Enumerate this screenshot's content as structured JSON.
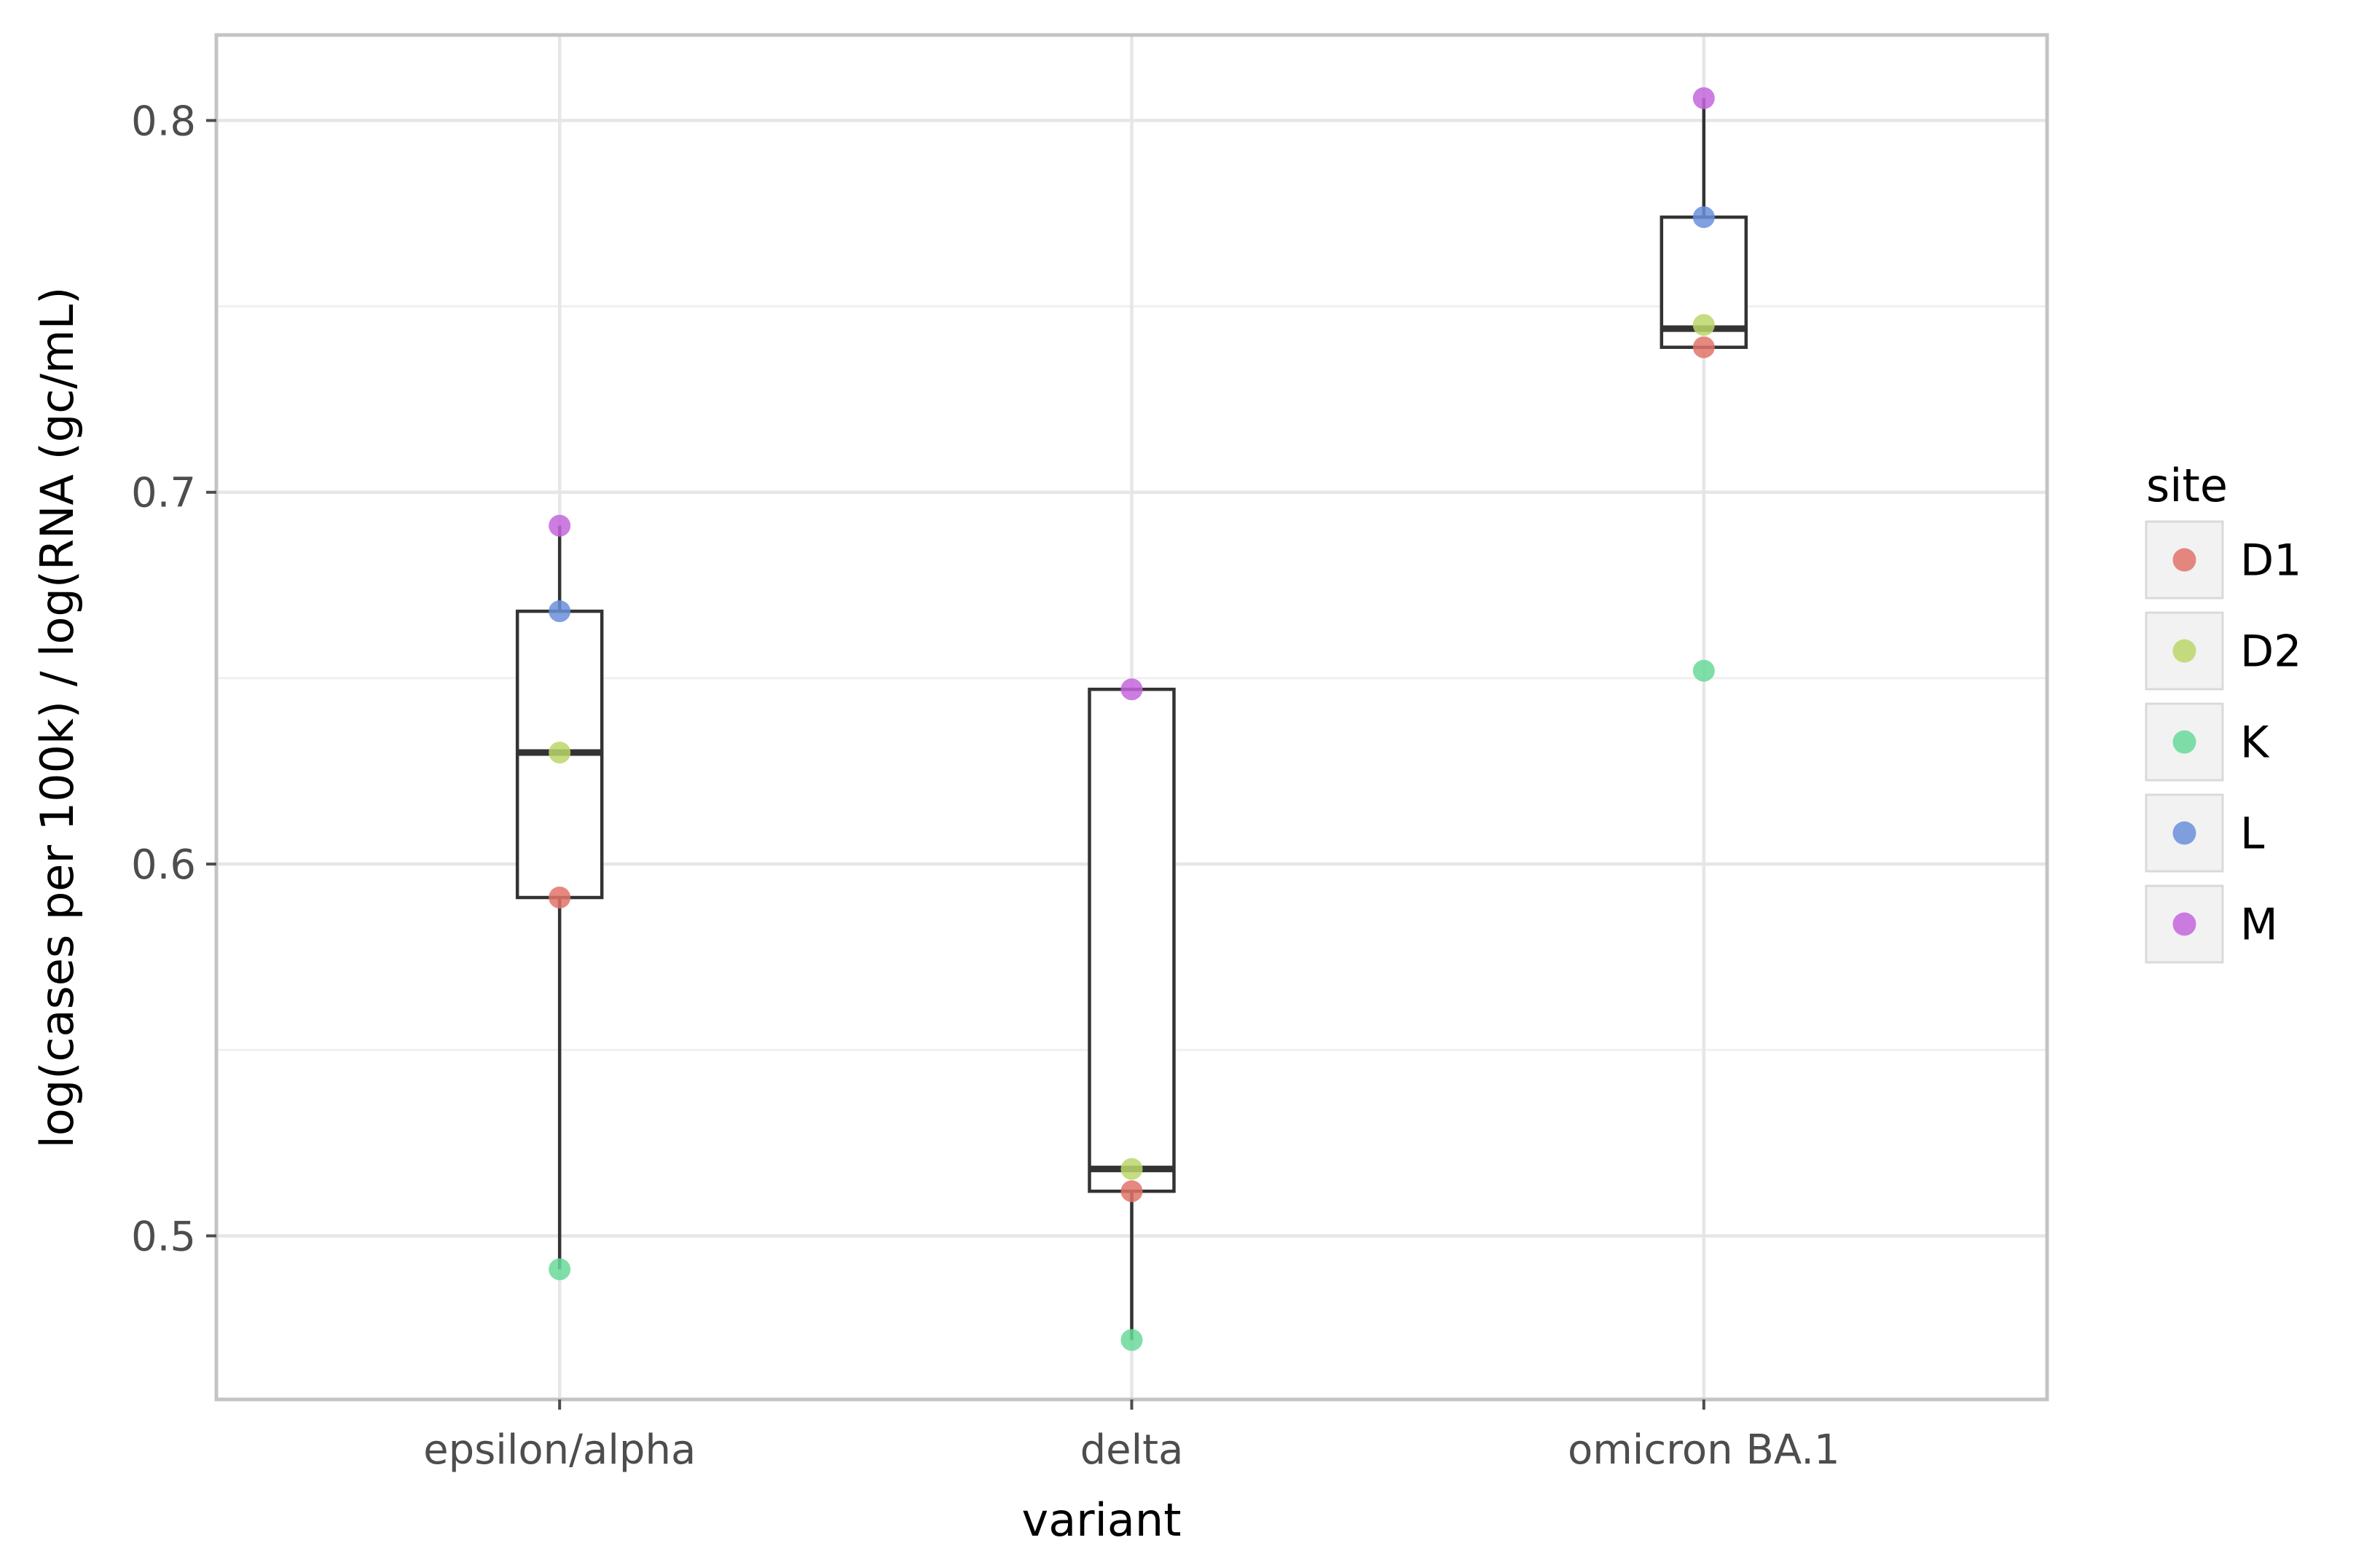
{
  "chart_data": {
    "type": "box",
    "title": "",
    "xlabel": "variant",
    "ylabel": "log(cases per 100k) / log(RNA (gc/mL)",
    "categories": [
      "epsilon/alpha",
      "delta",
      "omicron BA.1"
    ],
    "ylim": [
      0.456,
      0.823
    ],
    "yticks": [
      0.5,
      0.6,
      0.7,
      0.8
    ],
    "ytick_labels": [
      "0.5",
      "0.6",
      "0.7",
      "0.8"
    ],
    "grid": true,
    "boxes": [
      {
        "category": "epsilon/alpha",
        "whisker_low": 0.491,
        "q1": 0.591,
        "median": 0.63,
        "q3": 0.668,
        "whisker_high": 0.691
      },
      {
        "category": "delta",
        "whisker_low": 0.472,
        "q1": 0.512,
        "median": 0.518,
        "q3": 0.647,
        "whisker_high": 0.647
      },
      {
        "category": "omicron BA.1",
        "whisker_low": 0.739,
        "q1": 0.739,
        "median": 0.744,
        "q3": 0.774,
        "whisker_high": 0.806
      }
    ],
    "series": [
      {
        "name": "D1",
        "color": "#e1736a",
        "values": [
          0.591,
          0.512,
          0.739
        ]
      },
      {
        "name": "D2",
        "color": "#bcd66b",
        "values": [
          0.63,
          0.518,
          0.745
        ]
      },
      {
        "name": "K",
        "color": "#6ad99a",
        "values": [
          0.491,
          0.472,
          0.652
        ]
      },
      {
        "name": "L",
        "color": "#6b8fdb",
        "values": [
          0.668,
          null,
          0.774
        ]
      },
      {
        "name": "M",
        "color": "#c466dc",
        "values": [
          0.691,
          0.647,
          0.806
        ]
      }
    ],
    "legend": {
      "title": "site",
      "position": "right"
    }
  }
}
